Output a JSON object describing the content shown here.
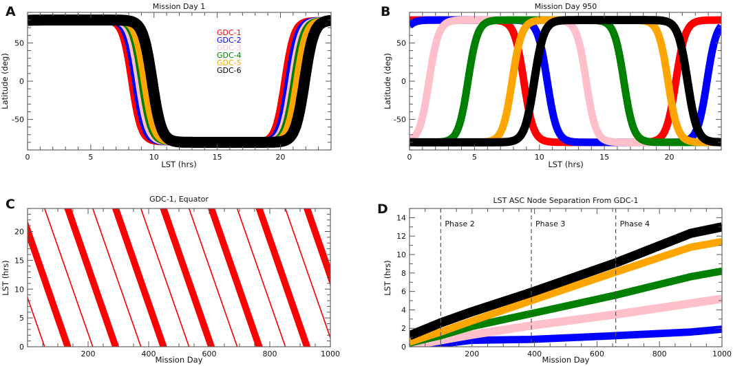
{
  "chart_data": [
    {
      "id": "A",
      "type": "line",
      "panel_letter": "A",
      "title": "Mission Day 1",
      "xlabel": "LST (hrs)",
      "ylabel": "Latitude (deg)",
      "xlim": [
        0,
        24
      ],
      "ylim": [
        -90,
        90
      ],
      "xticks": [
        0,
        5,
        10,
        15,
        20
      ],
      "yticks": [
        -50,
        0,
        50
      ],
      "x_minor_step": 1,
      "y_minor_step": 10,
      "legend_position": "top-center",
      "series": [
        {
          "name": "GDC-1",
          "color": "#ff0000",
          "descending_node_lst": 8.2,
          "ascending_node_lst": 20.3
        },
        {
          "name": "GDC-2",
          "color": "#0000ff",
          "descending_node_lst": 8.5,
          "ascending_node_lst": 20.6
        },
        {
          "name": "GDC-3",
          "color": "#ffc0cb",
          "descending_node_lst": 8.75,
          "ascending_node_lst": 20.85
        },
        {
          "name": "GDC-4",
          "color": "#008000",
          "descending_node_lst": 9.0,
          "ascending_node_lst": 21.05
        },
        {
          "name": "GDC-5",
          "color": "#ffa500",
          "descending_node_lst": 9.2,
          "ascending_node_lst": 21.25
        },
        {
          "name": "GDC-6",
          "color": "#000000",
          "descending_node_lst": 9.85,
          "ascending_node_lst": 21.9
        }
      ]
    },
    {
      "id": "B",
      "type": "line",
      "panel_letter": "B",
      "title": "Mission Day 950",
      "xlabel": "LST (hrs)",
      "ylabel": "Latitude (deg)",
      "xlim": [
        0,
        24
      ],
      "ylim": [
        -90,
        90
      ],
      "xticks": [
        0,
        5,
        10,
        15,
        20
      ],
      "yticks": [
        -50,
        0,
        50
      ],
      "x_minor_step": 1,
      "y_minor_step": 10,
      "series": [
        {
          "name": "GDC-1",
          "color": "#ff0000",
          "descending_node_lst": 8.8,
          "ascending_node_lst": 20.5
        },
        {
          "name": "GDC-2",
          "color": "#0000ff",
          "descending_node_lst": 10.6,
          "ascending_node_lst": 22.9
        },
        {
          "name": "GDC-3",
          "color": "#ffc0cb",
          "descending_node_lst": 13.6,
          "ascending_node_lst": 1.5
        },
        {
          "name": "GDC-4",
          "color": "#008000",
          "descending_node_lst": 16.5,
          "ascending_node_lst": 4.5
        },
        {
          "name": "GDC-5",
          "color": "#ffa500",
          "descending_node_lst": 19.9,
          "ascending_node_lst": 7.9
        },
        {
          "name": "GDC-6",
          "color": "#000000",
          "descending_node_lst": 21.4,
          "ascending_node_lst": 9.6
        }
      ]
    },
    {
      "id": "C",
      "type": "line",
      "panel_letter": "C",
      "title": "GDC-1, Equator",
      "xlabel": "Mission Day",
      "ylabel": "LST (hrs)",
      "xlim": [
        0,
        1000
      ],
      "ylim": [
        0,
        24
      ],
      "xticks": [
        200,
        400,
        600,
        800,
        1000
      ],
      "yticks": [
        0,
        5,
        10,
        15,
        20
      ],
      "x_minor_step": 50,
      "y_minor_step": 1,
      "series": [
        {
          "name": "GDC-1 equator crossing (wide)",
          "color": "#ff0000",
          "lst_at_day0": 20.2,
          "precession_period_days": 158,
          "band_hours": 3.6
        },
        {
          "name": "GDC-1 equator crossing (narrow)",
          "color": "#ff0000",
          "lst_at_day0": 8.5,
          "precession_period_days": 159,
          "band_hours": 0.6
        }
      ]
    },
    {
      "id": "D",
      "type": "line",
      "panel_letter": "D",
      "title": "LST ASC Node Separation From GDC-1",
      "xlabel": "Mission Day",
      "ylabel": "LST (hrs)",
      "xlim": [
        0,
        1000
      ],
      "ylim": [
        0,
        15
      ],
      "xticks": [
        200,
        400,
        600,
        800,
        1000
      ],
      "yticks": [
        0,
        2,
        4,
        6,
        8,
        10,
        12,
        14
      ],
      "x_minor_step": 50,
      "y_minor_step": 1,
      "phases": [
        {
          "label": "Phase 2",
          "day": 100
        },
        {
          "label": "Phase 3",
          "day": 390
        },
        {
          "label": "Phase 4",
          "day": 660
        }
      ],
      "x": [
        0,
        100,
        200,
        390,
        660,
        900,
        1000
      ],
      "series": [
        {
          "name": "GDC-2",
          "color": "#0000ff",
          "band_hours": 0.8,
          "values": [
            0.0,
            0.3,
            0.7,
            0.8,
            1.2,
            1.6,
            1.9
          ]
        },
        {
          "name": "GDC-3",
          "color": "#ffc0cb",
          "band_hours": 0.9,
          "values": [
            0.1,
            0.7,
            1.3,
            2.3,
            3.5,
            4.7,
            5.2
          ]
        },
        {
          "name": "GDC-4",
          "color": "#008000",
          "band_hours": 0.8,
          "values": [
            0.4,
            1.2,
            2.2,
            3.6,
            5.6,
            7.6,
            8.2
          ]
        },
        {
          "name": "GDC-5",
          "color": "#ffa500",
          "band_hours": 0.8,
          "values": [
            0.5,
            1.6,
            2.8,
            5.0,
            8.1,
            10.8,
            11.4
          ]
        },
        {
          "name": "GDC-6",
          "color": "#000000",
          "band_hours": 1.0,
          "values": [
            1.2,
            2.6,
            3.8,
            5.9,
            9.1,
            12.3,
            13.0
          ]
        }
      ]
    }
  ]
}
